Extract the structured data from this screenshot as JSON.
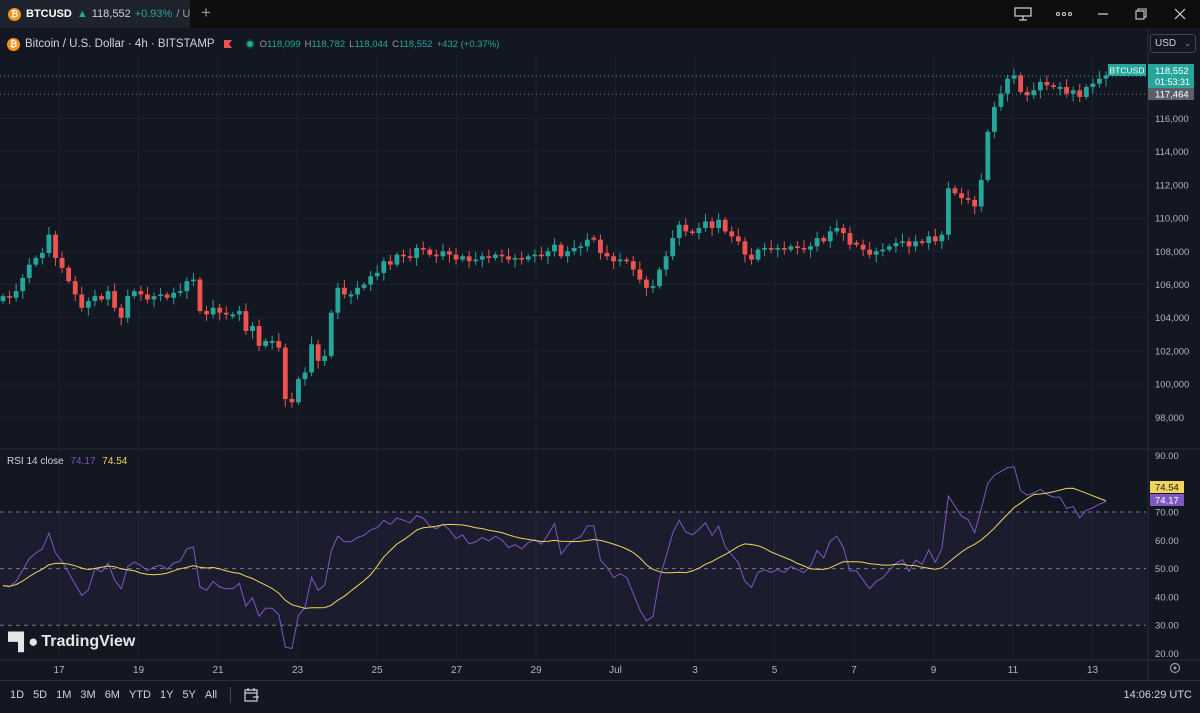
{
  "window": {
    "tab_symbol": "BTCUSD",
    "tab_price": "118,552",
    "tab_change": "+0.93%",
    "tab_rest": "/ Unc",
    "new_tab": "+",
    "coin_glyph": "₿"
  },
  "legend": {
    "title": "Bitcoin / U.S. Dollar · 4h · BITSTAMP",
    "o_label": "O",
    "o_value": "118,099",
    "h_label": "H",
    "h_value": "118,782",
    "l_label": "L",
    "l_value": "118,044",
    "c_label": "C",
    "c_value": "118,552",
    "change": "+432 (+0.37%)"
  },
  "currency": {
    "value": "USD",
    "chevron": "⌄"
  },
  "colors": {
    "up": "#26a69a",
    "down": "#ef5350",
    "rsi": "#7e57c2",
    "rsi_ma": "#f0d55a",
    "bg": "#131722"
  },
  "price_axis": {
    "labels": [
      "116,000",
      "114,000",
      "112,000",
      "110,000",
      "108,000",
      "106,000",
      "104,000",
      "102,000",
      "100,000",
      "98,000"
    ],
    "symbol_tag": "BTCUSD",
    "last_price": "118,552",
    "countdown": "01:53:31",
    "hline_price": "117,464"
  },
  "rsi": {
    "label": "RSI 14 close",
    "value": "74.17",
    "ma_value": "74.54",
    "axis_labels": [
      "90.00",
      "70.00",
      "60.00",
      "50.00",
      "40.00",
      "30.00",
      "20.00"
    ]
  },
  "time_axis": {
    "labels": [
      "17",
      "19",
      "21",
      "23",
      "25",
      "27",
      "29",
      "Jul",
      "3",
      "5",
      "7",
      "9",
      "11",
      "13"
    ]
  },
  "watermark": "TradingView",
  "bottombar": {
    "ranges": [
      "1D",
      "5D",
      "1M",
      "3M",
      "6M",
      "YTD",
      "1Y",
      "5Y",
      "All"
    ],
    "clock": "14:06:29 UTC"
  },
  "chart_data": {
    "type": "candlestick",
    "timeframe": "4h",
    "symbol": "BTCUSD",
    "price_range": [
      97000,
      119500
    ],
    "x_labels": [
      "17",
      "19",
      "21",
      "23",
      "25",
      "27",
      "29",
      "Jul",
      "3",
      "5",
      "7",
      "9",
      "11",
      "13"
    ],
    "closes": [
      105300,
      105200,
      105600,
      106400,
      107200,
      107600,
      107900,
      109000,
      107600,
      107000,
      106200,
      105400,
      104600,
      105000,
      105300,
      105100,
      105600,
      104600,
      104000,
      105300,
      105600,
      105400,
      105100,
      105300,
      105400,
      105200,
      105500,
      105600,
      106200,
      106300,
      104400,
      104200,
      104600,
      104300,
      104200,
      104200,
      104400,
      103200,
      103500,
      102300,
      102600,
      102600,
      102200,
      99100,
      98900,
      100300,
      100700,
      102400,
      101400,
      101700,
      104300,
      105800,
      105400,
      105400,
      105800,
      106000,
      106500,
      106700,
      107400,
      107200,
      107800,
      107700,
      107600,
      108200,
      108100,
      107800,
      107700,
      108000,
      107800,
      107500,
      107700,
      107400,
      107500,
      107700,
      107600,
      107800,
      107700,
      107500,
      107600,
      107500,
      107700,
      107800,
      107700,
      108000,
      108400,
      107700,
      108000,
      108200,
      108300,
      108700,
      108700,
      107900,
      107700,
      107400,
      107500,
      107400,
      106900,
      106300,
      105800,
      105900,
      106900,
      107700,
      108800,
      109600,
      109200,
      109100,
      109400,
      109800,
      109400,
      109900,
      109200,
      108900,
      108600,
      107800,
      107500,
      108100,
      108200,
      108100,
      108200,
      108100,
      108300,
      108200,
      108100,
      108300,
      108800,
      108600,
      109200,
      109400,
      109100,
      108400,
      108400,
      108100,
      107800,
      108000,
      108100,
      108300,
      108500,
      108600,
      108300,
      108600,
      108500,
      108900,
      108600,
      109000,
      111800,
      111500,
      111200,
      111100,
      110700,
      112300,
      115200,
      116700,
      117500,
      118400,
      118600,
      117600,
      117400,
      117700,
      118200,
      118000,
      117900,
      117900,
      117500,
      117700,
      117300,
      117900,
      118100,
      118400,
      118600
    ]
  }
}
